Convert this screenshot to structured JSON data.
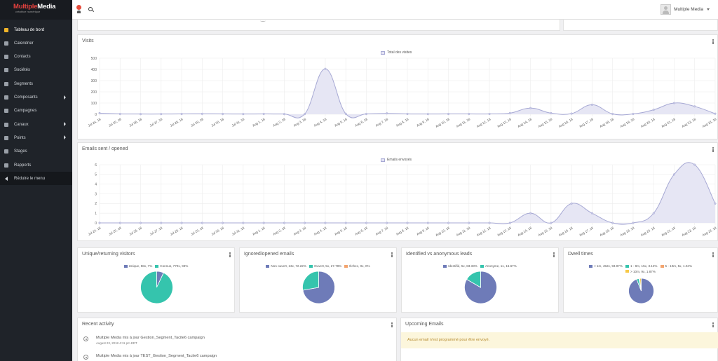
{
  "brand": {
    "name_red": "Multiple",
    "name_white": "Media",
    "tagline": "créatrice numérique"
  },
  "sidebar": {
    "items": [
      {
        "label": "Tableau de bord",
        "icon": "dashboard-icon",
        "active": true
      },
      {
        "label": "Calendrier",
        "icon": "calendar-icon"
      },
      {
        "label": "Contacts",
        "icon": "user-icon"
      },
      {
        "label": "Sociétés",
        "icon": "building-icon"
      },
      {
        "label": "Segments",
        "icon": "pie-icon"
      },
      {
        "label": "Composants",
        "icon": "puzzle-icon",
        "submenu": true
      },
      {
        "label": "Campagnes",
        "icon": "clock-icon"
      },
      {
        "label": "Canaux",
        "icon": "rss-icon",
        "submenu": true
      },
      {
        "label": "Points",
        "icon": "sliders-icon",
        "submenu": true
      },
      {
        "label": "Stages",
        "icon": "stages-icon"
      },
      {
        "label": "Rapports",
        "icon": "chart-icon"
      }
    ],
    "collapse_label": "Réduire le menu"
  },
  "topbar": {
    "user_name": "Multiple Media"
  },
  "dates": [
    "Jul 24, 18",
    "Jul 25, 18",
    "Jul 26, 18",
    "Jul 27, 18",
    "Jul 28, 18",
    "Jul 29, 18",
    "Jul 30, 18",
    "Jul 31, 18",
    "Aug 1, 18",
    "Aug 2, 18",
    "Aug 3, 18",
    "Aug 4, 18",
    "Aug 5, 18",
    "Aug 6, 18",
    "Aug 7, 18",
    "Aug 8, 18",
    "Aug 9, 18",
    "Aug 10, 18",
    "Aug 11, 18",
    "Aug 12, 18",
    "Aug 13, 18",
    "Aug 14, 18",
    "Aug 15, 18",
    "Aug 16, 18",
    "Aug 17, 18",
    "Aug 18, 18",
    "Aug 19, 18",
    "Aug 20, 18",
    "Aug 21, 18",
    "Aug 22, 18",
    "Aug 23, 18"
  ],
  "chart_data": [
    {
      "type": "area",
      "title": "Visits",
      "legend": "Total des visites",
      "legend_position": "top",
      "ylim": [
        0,
        500
      ],
      "yticks": [
        0,
        100,
        200,
        300,
        400,
        500
      ],
      "grid": true,
      "color": "#a7a9d4",
      "x": "dates",
      "series": [
        {
          "name": "Total des visites",
          "values": [
            10,
            3,
            2,
            2,
            3,
            4,
            3,
            2,
            3,
            2,
            3,
            405,
            4,
            3,
            8,
            3,
            2,
            3,
            3,
            3,
            10,
            55,
            10,
            6,
            85,
            3,
            3,
            40,
            100,
            70,
            5
          ]
        }
      ]
    },
    {
      "type": "area",
      "title": "Emails sent / opened",
      "legend": "Emails envoyés",
      "legend_position": "top",
      "ylim": [
        0,
        6
      ],
      "yticks": [
        0,
        1,
        2,
        3,
        4,
        5,
        6
      ],
      "grid": true,
      "color": "#a7a9d4",
      "x": "dates",
      "series": [
        {
          "name": "Emails envoyés",
          "values": [
            0,
            0,
            0,
            0,
            0,
            0,
            0,
            0,
            0,
            0,
            0,
            0,
            0,
            0,
            0,
            0,
            0,
            0,
            0,
            0,
            0,
            1,
            0,
            2,
            1,
            0,
            0,
            1,
            5,
            6,
            2
          ]
        }
      ]
    },
    {
      "type": "pie",
      "title": "Unique/returning visitors",
      "slices": [
        {
          "name": "Unique, 58x, 7%",
          "value": 7,
          "color": "#6e7bb8"
        },
        {
          "name": "Connus, 770x, 93%",
          "value": 93,
          "color": "#35c4ad"
        }
      ]
    },
    {
      "type": "pie",
      "title": "Ignored/opened emails",
      "slices": [
        {
          "name": "Non ouvert, 13x, 72.22%",
          "value": 72.22,
          "color": "#6e7bb8"
        },
        {
          "name": "Ouvert, 5x, 27.78%",
          "value": 27.78,
          "color": "#35c4ad"
        },
        {
          "name": "Échec, 0x, 0%",
          "value": 0,
          "color": "#f3a46e"
        }
      ]
    },
    {
      "type": "pie",
      "title": "Identified vs anonymous leads",
      "slices": [
        {
          "name": "Identifié, 5x, 83.33%",
          "value": 83.33,
          "color": "#6e7bb8"
        },
        {
          "name": "Anonyme, 1x, 16.67%",
          "value": 16.67,
          "color": "#35c4ad"
        }
      ]
    },
    {
      "type": "pie",
      "title": "Dwell times",
      "slices": [
        {
          "name": "< 1m, 452x, 93.97%",
          "value": 93.97,
          "color": "#6e7bb8"
        },
        {
          "name": "1 - 9m, 15x, 3.12%",
          "value": 3.12,
          "color": "#35c4ad"
        },
        {
          "name": "5 - 10m, 5x, 1.04%",
          "value": 1.04,
          "color": "#f3a46e"
        },
        {
          "name": "> 10m, 9x, 1.87%",
          "value": 1.87,
          "color": "#f7c948"
        }
      ]
    }
  ],
  "recent_activity": {
    "title": "Recent activity",
    "items": [
      {
        "text": "Multiple Media mis à jour Gestion_Segment_Tacite6 campaign",
        "time": "August 23, 2018 4:11 pm EDT"
      },
      {
        "text": "Multiple Media mis à jour TEST_Gestion_Segment_Tacite6 campaign",
        "time": ""
      }
    ]
  },
  "upcoming_emails": {
    "title": "Upcoming Emails",
    "empty_message": "Aucun email n'est programmé pour être envoyé."
  }
}
